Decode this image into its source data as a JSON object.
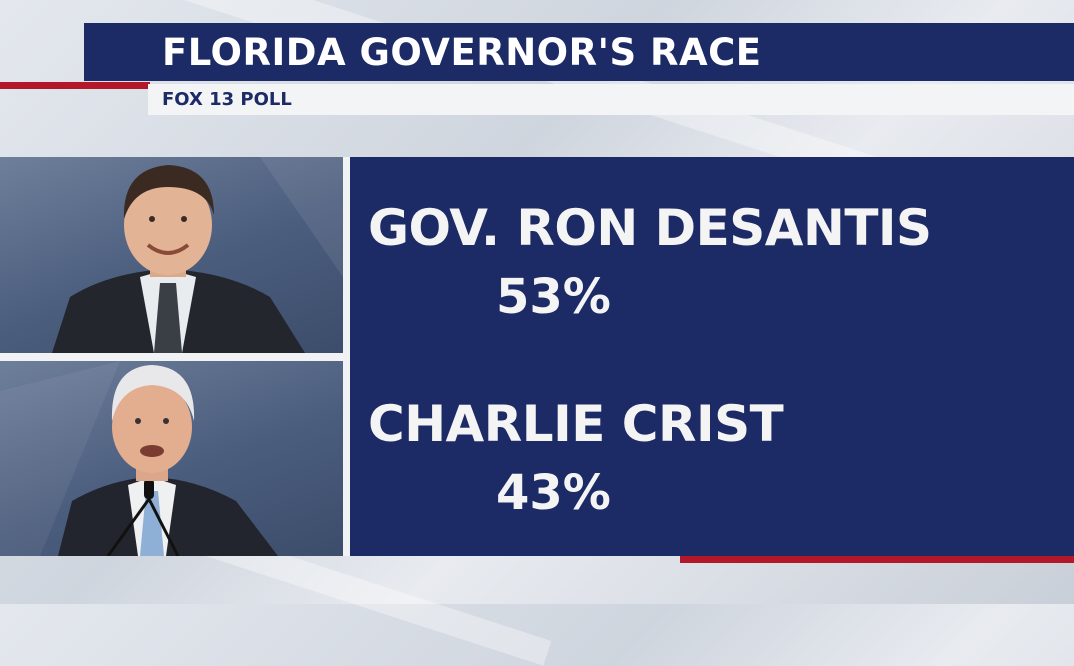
{
  "header": {
    "title": "FLORIDA GOVERNOR'S RACE",
    "subtitle": "FOX 13 POLL"
  },
  "candidates": [
    {
      "name": "GOV. RON DESANTIS",
      "percent": "53%"
    },
    {
      "name": "CHARLIE CRIST",
      "percent": "43%"
    }
  ],
  "colors": {
    "navy": "#1c2a66",
    "red": "#b3172a",
    "light": "#f3f4f6"
  }
}
